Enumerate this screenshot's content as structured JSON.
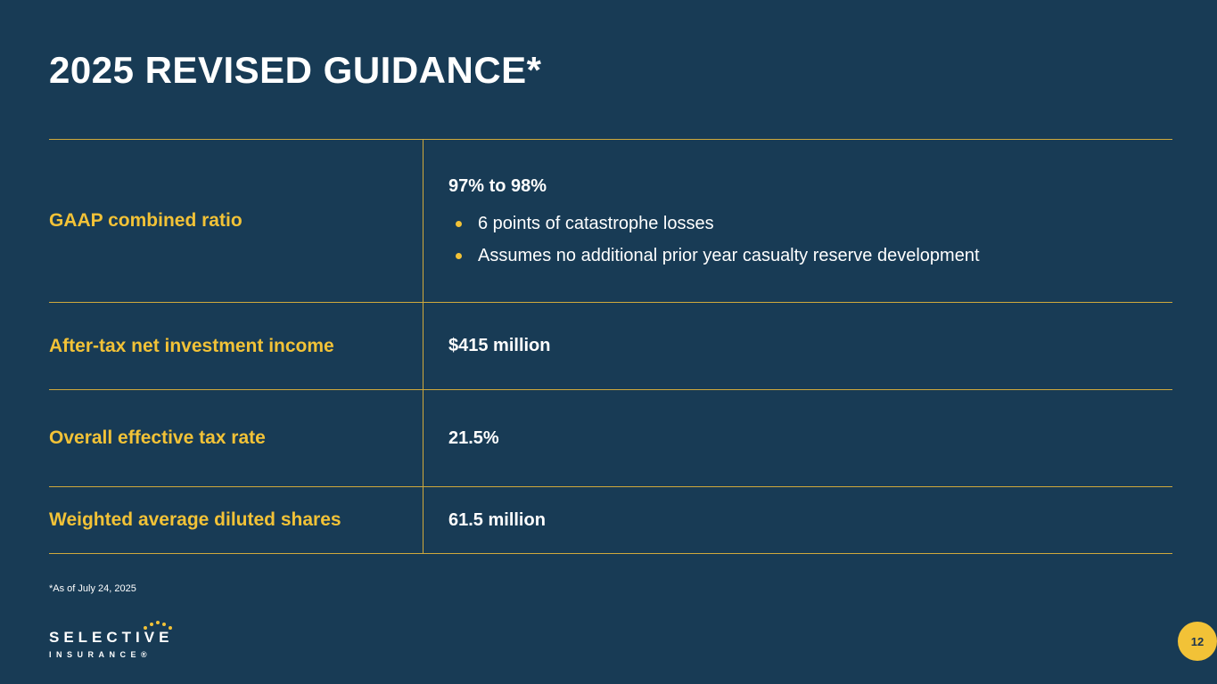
{
  "slide": {
    "title": "2025 REVISED GUIDANCE*",
    "footnote": "*As of July 24, 2025",
    "page_number": "12",
    "colors": {
      "background": "#183b55",
      "accent_gold": "#f2c237",
      "line_gold": "#cfa93c",
      "text": "#ffffff"
    },
    "logo": {
      "line1": "SELECTIVE",
      "line2": "INSURANCE®"
    },
    "table": {
      "rows": [
        {
          "label": "GAAP combined ratio",
          "value": "97% to 98%",
          "bullets": [
            "6 points of catastrophe losses",
            "Assumes no additional prior year casualty reserve development"
          ]
        },
        {
          "label": "After-tax net investment income",
          "value": "$415 million"
        },
        {
          "label": "Overall effective tax rate",
          "value": "21.5%"
        },
        {
          "label": "Weighted average diluted shares",
          "value": "61.5 million"
        }
      ]
    }
  }
}
